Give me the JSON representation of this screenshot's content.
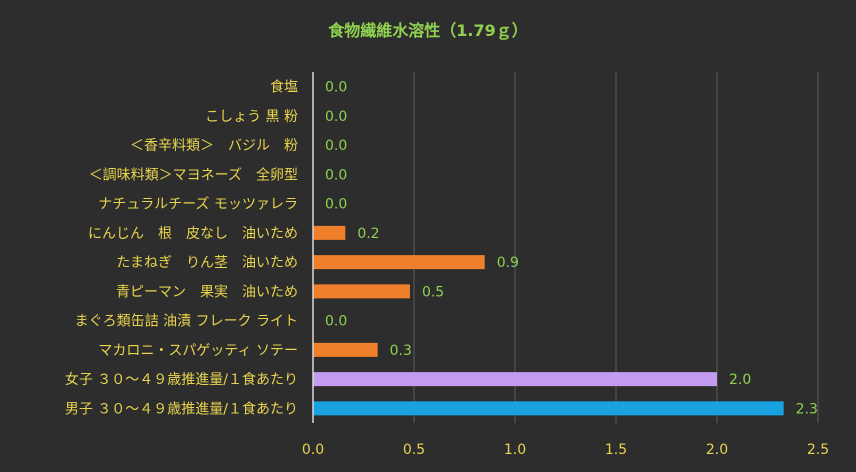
{
  "chart_data": {
    "type": "bar",
    "orientation": "horizontal",
    "title": "食物繊維水溶性（1.79ｇ）",
    "categories": [
      "食塩",
      "こしょう 黒 粉",
      "＜香辛料類＞　バジル　粉",
      "＜調味料類＞マヨネーズ　全卵型",
      "ナチュラルチーズ モッツァレラ",
      "にんじん　根　皮なし　油いため",
      "たまねぎ　りん茎　油いため",
      "青ピーマン　果実　油いため",
      "まぐろ類缶詰 油漬 フレーク ライト",
      "マカロニ・スパゲッティ ソテー",
      "女子 ３０～４９歳推進量/１食あたり",
      "男子 ３０～４９歳推進量/１食あたり"
    ],
    "values": [
      0.0,
      0.0,
      0.0,
      0.0,
      0.0,
      0.16,
      0.85,
      0.48,
      0.0,
      0.32,
      2.0,
      2.33
    ],
    "value_labels": [
      "0.0",
      "0.0",
      "0.0",
      "0.0",
      "0.0",
      "0.2",
      "0.9",
      "0.5",
      "0.0",
      "0.3",
      "2.0",
      "2.3"
    ],
    "bar_colors": [
      "#f07f2c",
      "#f07f2c",
      "#f07f2c",
      "#f07f2c",
      "#f07f2c",
      "#f07f2c",
      "#f07f2c",
      "#f07f2c",
      "#f07f2c",
      "#f07f2c",
      "#c39bf0",
      "#18a3e0"
    ],
    "xlim": [
      0,
      2.5
    ],
    "xticks": [
      "0.0",
      "0.5",
      "1.0",
      "1.5",
      "2.0",
      "2.5"
    ],
    "grid": "vertical",
    "legend": "none",
    "colors": {
      "background": "#2d2d2d",
      "title": "#8fd14f",
      "category_text": "#e8d44d",
      "tick_text": "#e8d44d",
      "value_text": "#8fd14f",
      "grid": "#5a5a5a",
      "axis": "#d9d9d9"
    }
  }
}
